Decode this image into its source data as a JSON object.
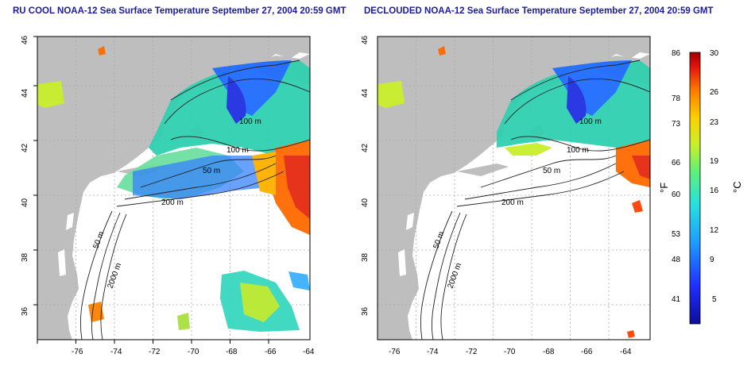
{
  "panels": [
    {
      "title": "RU COOL NOAA-12 Sea Surface Temperature September 27, 2004 20:59 GMT",
      "contour_labels": [
        "100 m",
        "100 m",
        "50 m",
        "200 m",
        "50 m",
        "2000 m"
      ]
    },
    {
      "title": "DECLOUDED NOAA-12 Sea Surface Temperature September 27, 2004 20:59 GMT",
      "contour_labels": [
        "100 m",
        "100 m",
        "50 m",
        "200 m",
        "50 m",
        "2000 m"
      ]
    }
  ],
  "axes": {
    "x_ticks": [
      "-76",
      "-74",
      "-72",
      "-70",
      "-68",
      "-66",
      "-64"
    ],
    "y_ticks": [
      "36",
      "38",
      "40",
      "42",
      "44",
      "46"
    ]
  },
  "colorbar": {
    "f_label": "°F",
    "c_label": "°C",
    "f_ticks": [
      "86",
      "78",
      "73",
      "66",
      "60",
      "53",
      "48",
      "41"
    ],
    "c_ticks": [
      "30",
      "26",
      "23",
      "19",
      "16",
      "12",
      "9",
      "5"
    ],
    "colors": {
      "cold": "#1a1aff",
      "cool": "#2aa8ff",
      "mid": "#30e8c8",
      "warm": "#c8e830",
      "hot": "#ff8000",
      "hottest": "#cc0000"
    }
  },
  "colors": {
    "land": "#bebebe",
    "title": "#1a1aa6"
  }
}
